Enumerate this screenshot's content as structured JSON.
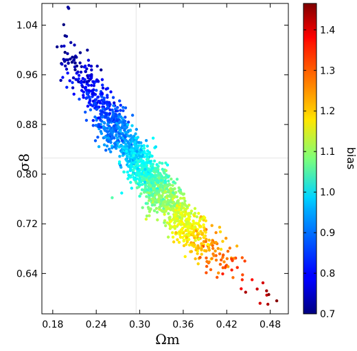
{
  "chart_data": {
    "type": "scatter",
    "xlabel": "Ωm",
    "ylabel": "σ8",
    "xlim": [
      0.165,
      0.505
    ],
    "ylim": [
      0.575,
      1.075
    ],
    "x_ticks": [
      "0.18",
      "0.24",
      "0.30",
      "0.36",
      "0.42",
      "0.48"
    ],
    "y_ticks": [
      "0.64",
      "0.72",
      "0.80",
      "0.88",
      "0.96",
      "1.04"
    ],
    "reference_lines": {
      "x": 0.295,
      "y": 0.826
    },
    "grid": false,
    "colorbar": {
      "label": "bias",
      "colormap": "jet",
      "range": [
        0.7,
        1.465
      ],
      "ticks": [
        "0.7",
        "0.8",
        "0.9",
        "1.0",
        "1.1",
        "1.2",
        "1.3",
        "1.4"
      ]
    },
    "trend": {
      "description_points": [
        {
          "x": 0.19,
          "y": 1.0,
          "bias": 0.72
        },
        {
          "x": 0.22,
          "y": 0.95,
          "bias": 0.78
        },
        {
          "x": 0.25,
          "y": 0.9,
          "bias": 0.84
        },
        {
          "x": 0.28,
          "y": 0.85,
          "bias": 0.92
        },
        {
          "x": 0.31,
          "y": 0.8,
          "bias": 1.02
        },
        {
          "x": 0.34,
          "y": 0.76,
          "bias": 1.1
        },
        {
          "x": 0.37,
          "y": 0.71,
          "bias": 1.18
        },
        {
          "x": 0.4,
          "y": 0.68,
          "bias": 1.26
        },
        {
          "x": 0.44,
          "y": 0.64,
          "bias": 1.33
        },
        {
          "x": 0.48,
          "y": 0.61,
          "bias": 1.42
        }
      ]
    },
    "points": [
      {
        "x": 0.202,
        "y": 1.067,
        "bias": 0.72
      },
      {
        "x": 0.201,
        "y": 1.069,
        "bias": 0.72
      },
      {
        "x": 0.186,
        "y": 1.005,
        "bias": 0.71
      },
      {
        "x": 0.199,
        "y": 1.022,
        "bias": 0.72
      },
      {
        "x": 0.205,
        "y": 1.012,
        "bias": 0.73
      },
      {
        "x": 0.21,
        "y": 1.008,
        "bias": 0.74
      },
      {
        "x": 0.195,
        "y": 0.985,
        "bias": 0.73
      },
      {
        "x": 0.478,
        "y": 0.606,
        "bias": 1.46
      },
      {
        "x": 0.489,
        "y": 0.596,
        "bias": 1.46
      },
      {
        "x": 0.475,
        "y": 0.612,
        "bias": 1.44
      },
      {
        "x": 0.466,
        "y": 0.592,
        "bias": 1.4
      },
      {
        "x": 0.47,
        "y": 0.625,
        "bias": 1.4
      },
      {
        "x": 0.462,
        "y": 0.615,
        "bias": 1.41
      },
      {
        "x": 0.455,
        "y": 0.63,
        "bias": 1.36
      },
      {
        "x": 0.445,
        "y": 0.66,
        "bias": 1.32
      },
      {
        "x": 0.262,
        "y": 0.762,
        "bias": 1.05
      },
      {
        "x": 0.235,
        "y": 0.91,
        "bias": 0.82
      },
      {
        "x": 0.33,
        "y": 0.79,
        "bias": 1.02
      },
      {
        "x": 0.4,
        "y": 0.69,
        "bias": 1.25
      },
      {
        "x": 0.38,
        "y": 0.72,
        "bias": 1.17
      }
    ]
  }
}
